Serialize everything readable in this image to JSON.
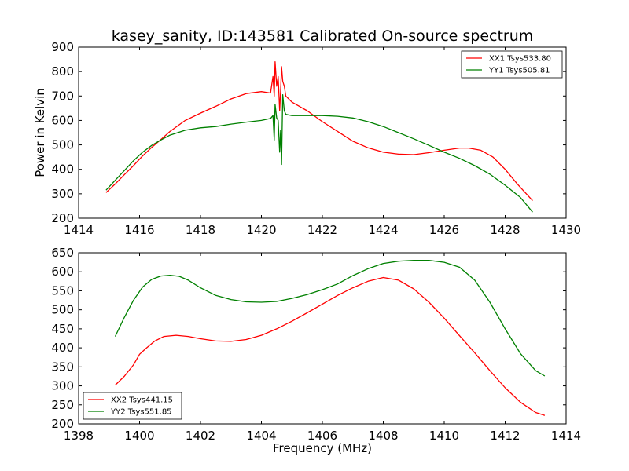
{
  "title": "kasey_sanity, ID:143581 Calibrated On-source spectrum",
  "chart_data": [
    {
      "type": "line",
      "xlabel": "",
      "ylabel": "Power in Kelvin",
      "xlim": [
        1414,
        1430
      ],
      "ylim": [
        200,
        900
      ],
      "xticks": [
        "1414",
        "1416",
        "1418",
        "1420",
        "1422",
        "1424",
        "1426",
        "1428",
        "1430"
      ],
      "yticks": [
        "200",
        "300",
        "400",
        "500",
        "600",
        "700",
        "800",
        "900"
      ],
      "legend_position": "top-right",
      "series": [
        {
          "name": "XX1 Tsys533.80",
          "color": "#ff0000",
          "x": [
            1414.9,
            1415.2,
            1415.5,
            1415.8,
            1416.1,
            1416.4,
            1416.7,
            1417.0,
            1417.5,
            1418.0,
            1418.5,
            1419.0,
            1419.5,
            1420.0,
            1420.3,
            1420.38,
            1420.42,
            1420.45,
            1420.5,
            1420.55,
            1420.6,
            1420.63,
            1420.66,
            1420.7,
            1420.75,
            1420.8,
            1421.0,
            1421.5,
            1422.0,
            1422.5,
            1423.0,
            1423.5,
            1424.0,
            1424.5,
            1425.0,
            1425.5,
            1426.0,
            1426.5,
            1426.8,
            1427.2,
            1427.6,
            1428.0,
            1428.4,
            1428.9
          ],
          "values": [
            305,
            340,
            378,
            415,
            455,
            490,
            522,
            555,
            600,
            630,
            658,
            688,
            710,
            718,
            712,
            780,
            700,
            840,
            740,
            780,
            640,
            720,
            820,
            760,
            740,
            700,
            675,
            640,
            595,
            555,
            515,
            488,
            470,
            462,
            460,
            468,
            478,
            487,
            487,
            478,
            450,
            400,
            340,
            272
          ]
        },
        {
          "name": "YY1 Tsys505.81",
          "color": "#008000",
          "x": [
            1414.9,
            1415.2,
            1415.5,
            1415.8,
            1416.1,
            1416.4,
            1416.7,
            1417.0,
            1417.5,
            1418.0,
            1418.5,
            1419.0,
            1419.5,
            1420.0,
            1420.3,
            1420.38,
            1420.42,
            1420.45,
            1420.5,
            1420.55,
            1420.6,
            1420.63,
            1420.66,
            1420.7,
            1420.75,
            1420.8,
            1421.0,
            1421.5,
            1422.0,
            1422.5,
            1423.0,
            1423.5,
            1424.0,
            1424.5,
            1425.0,
            1425.5,
            1426.0,
            1426.5,
            1427.0,
            1427.5,
            1428.0,
            1428.5,
            1428.9
          ],
          "values": [
            315,
            355,
            395,
            435,
            470,
            498,
            520,
            540,
            560,
            570,
            575,
            585,
            593,
            600,
            608,
            620,
            520,
            665,
            610,
            600,
            470,
            560,
            420,
            705,
            640,
            625,
            620,
            620,
            620,
            617,
            610,
            595,
            575,
            550,
            525,
            498,
            470,
            445,
            415,
            380,
            335,
            285,
            225
          ]
        }
      ]
    },
    {
      "type": "line",
      "xlabel": "Frequency (MHz)",
      "ylabel": "",
      "xlim": [
        1398,
        1414
      ],
      "ylim": [
        200,
        650
      ],
      "xticks": [
        "1398",
        "1400",
        "1402",
        "1404",
        "1406",
        "1408",
        "1410",
        "1412",
        "1414"
      ],
      "yticks": [
        "200",
        "250",
        "300",
        "350",
        "400",
        "450",
        "500",
        "550",
        "600",
        "650"
      ],
      "legend_position": "bottom-left",
      "series": [
        {
          "name": "XX2 Tsys441.15",
          "color": "#ff0000",
          "x": [
            1399.2,
            1399.5,
            1399.8,
            1400.0,
            1400.2,
            1400.5,
            1400.8,
            1401.2,
            1401.6,
            1402.0,
            1402.5,
            1403.0,
            1403.5,
            1404.0,
            1404.5,
            1405.0,
            1405.5,
            1406.0,
            1406.5,
            1407.0,
            1407.5,
            1408.0,
            1408.5,
            1409.0,
            1409.5,
            1410.0,
            1410.5,
            1411.0,
            1411.5,
            1412.0,
            1412.5,
            1413.0,
            1413.3
          ],
          "values": [
            302,
            325,
            355,
            383,
            398,
            418,
            430,
            433,
            430,
            424,
            418,
            417,
            422,
            433,
            450,
            470,
            492,
            515,
            538,
            558,
            575,
            585,
            578,
            555,
            520,
            478,
            432,
            387,
            340,
            295,
            257,
            230,
            222
          ]
        },
        {
          "name": "YY2 Tsys551.85",
          "color": "#008000",
          "x": [
            1399.2,
            1399.5,
            1399.8,
            1400.1,
            1400.4,
            1400.7,
            1401.0,
            1401.3,
            1401.6,
            1402.0,
            1402.5,
            1403.0,
            1403.5,
            1404.0,
            1404.5,
            1405.0,
            1405.5,
            1406.0,
            1406.5,
            1407.0,
            1407.5,
            1408.0,
            1408.5,
            1409.0,
            1409.5,
            1410.0,
            1410.5,
            1411.0,
            1411.5,
            1412.0,
            1412.5,
            1413.0,
            1413.3
          ],
          "values": [
            430,
            480,
            525,
            560,
            580,
            589,
            591,
            588,
            578,
            558,
            538,
            527,
            521,
            520,
            522,
            530,
            540,
            553,
            568,
            590,
            608,
            622,
            628,
            630,
            630,
            625,
            612,
            578,
            520,
            450,
            385,
            340,
            326
          ]
        }
      ]
    }
  ]
}
